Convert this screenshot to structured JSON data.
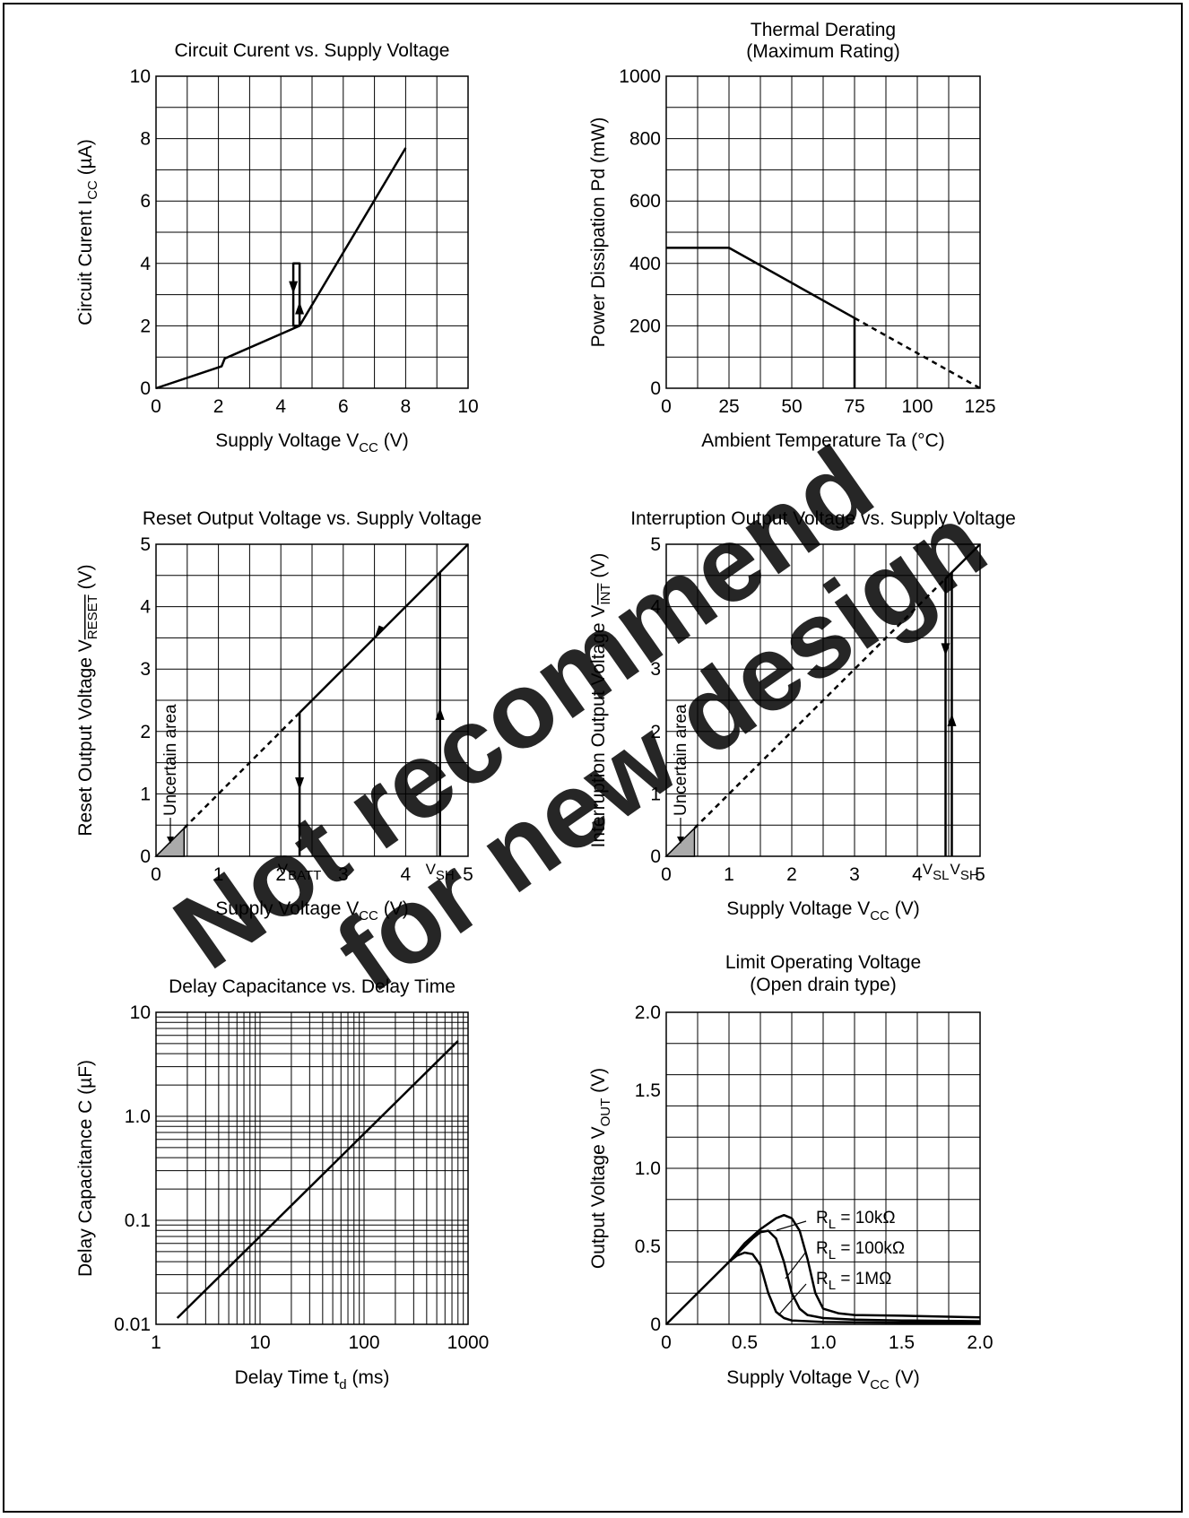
{
  "watermark": {
    "line1": "Not recommend",
    "line2": "for new design",
    "color": "#ff4040"
  },
  "chart_data": [
    {
      "id": "c1",
      "type": "line",
      "title": [
        "Circuit Curent vs. Supply Voltage"
      ],
      "xlabel": {
        "main": "Supply Voltage   V",
        "sub": "CC",
        "unit": "   (V)"
      },
      "ylabel": {
        "main": "Circuit Curent   I",
        "sub": "CC",
        "unit": "   (µA)"
      },
      "xlim": [
        0,
        10
      ],
      "ylim": [
        0,
        10
      ],
      "xticks": [
        "0",
        "2",
        "4",
        "6",
        "8",
        "10"
      ],
      "yticks": [
        "0",
        "2",
        "4",
        "6",
        "8",
        "10"
      ],
      "grid": true,
      "series": [
        {
          "x": [
            0,
            2.1,
            2.2,
            4.6,
            4.6,
            4.4,
            4.4,
            4.6,
            8.0
          ],
          "y": [
            0,
            0.7,
            0.95,
            2.0,
            4.0,
            4.0,
            2.0,
            2.0,
            7.7
          ]
        }
      ],
      "arrows": [
        {
          "x": 4.4,
          "y": 3.2,
          "dir": "down"
        },
        {
          "x": 4.6,
          "y": 2.6,
          "dir": "up"
        }
      ]
    },
    {
      "id": "c2",
      "type": "line",
      "title": [
        "Thermal Derating",
        "(Maximum Rating)"
      ],
      "xlabel": {
        "main": "Ambient Temperature   Ta   (°C)",
        "sub": "",
        "unit": ""
      },
      "ylabel": {
        "main": "Power Dissipation   Pd   (mW)",
        "sub": "",
        "unit": ""
      },
      "xlim": [
        0,
        125
      ],
      "ylim": [
        0,
        1000
      ],
      "xticks": [
        "0",
        "25",
        "50",
        "75",
        "100",
        "125"
      ],
      "yticks": [
        "0",
        "200",
        "400",
        "600",
        "800",
        "1000"
      ],
      "grid": true,
      "series": [
        {
          "x": [
            0,
            25,
            75
          ],
          "y": [
            450,
            450,
            225
          ]
        },
        {
          "x": [
            75,
            125
          ],
          "y": [
            225,
            0
          ],
          "dash": true
        },
        {
          "x": [
            75,
            75
          ],
          "y": [
            225,
            0
          ]
        }
      ]
    },
    {
      "id": "c3",
      "type": "line",
      "title": [
        "Reset Output Voltage vs. Supply Voltage"
      ],
      "xlabel": {
        "main": "Supply Voltage   V",
        "sub": "CC",
        "unit": "   (V)"
      },
      "ylabel": {
        "main": "Reset Output Voltage   V",
        "sub": "RESET",
        "unit": "   (V)"
      },
      "xlim": [
        0,
        5
      ],
      "ylim": [
        0,
        5
      ],
      "xticks": [
        "0",
        "1",
        "2",
        "3",
        "4",
        "5"
      ],
      "yticks": [
        "0",
        "1",
        "2",
        "3",
        "4",
        "5"
      ],
      "grid": true,
      "series": [
        {
          "x": [
            0.45,
            2.3
          ],
          "y": [
            0.45,
            2.3
          ],
          "dash": true
        },
        {
          "x": [
            2.3,
            5
          ],
          "y": [
            2.3,
            5
          ]
        },
        {
          "x": [
            2.3,
            2.3
          ],
          "y": [
            2.3,
            0
          ]
        },
        {
          "x": [
            4.55,
            4.55
          ],
          "y": [
            0,
            4.55
          ]
        }
      ],
      "arrows": [
        {
          "x": 3.6,
          "y": 3.6,
          "dir": "downleft"
        },
        {
          "x": 2.3,
          "y": 1.15,
          "dir": "down"
        },
        {
          "x": 4.55,
          "y": 2.3,
          "dir": "up"
        }
      ],
      "uncertain": {
        "label": "Uncertain area",
        "x": 0.45
      },
      "markers": [
        {
          "main": "V",
          "sub": "BATT",
          "x": 2.3
        },
        {
          "main": "V",
          "sub": "SH",
          "x": 4.55
        }
      ]
    },
    {
      "id": "c4",
      "type": "line",
      "title": [
        "Interruption Output Voltage vs. Supply Voltage"
      ],
      "xlabel": {
        "main": "Supply Voltage   V",
        "sub": "CC",
        "unit": "   (V)"
      },
      "ylabel": {
        "main": "Interruption Output Voltage   V",
        "sub": "INT",
        "unit": "   (V)"
      },
      "xlim": [
        0,
        5
      ],
      "ylim": [
        0,
        5
      ],
      "xticks": [
        "0",
        "1",
        "2",
        "3",
        "4",
        "5"
      ],
      "yticks": [
        "0",
        "1",
        "2",
        "3",
        "4",
        "5"
      ],
      "grid": true,
      "series": [
        {
          "x": [
            0.45,
            4.45
          ],
          "y": [
            0.45,
            4.45
          ],
          "dash": true
        },
        {
          "x": [
            4.45,
            5
          ],
          "y": [
            4.45,
            5
          ]
        },
        {
          "x": [
            4.45,
            4.45
          ],
          "y": [
            4.45,
            0
          ]
        },
        {
          "x": [
            4.55,
            4.55
          ],
          "y": [
            0,
            4.55
          ]
        }
      ],
      "arrows": [
        {
          "x": 4.45,
          "y": 3.3,
          "dir": "down"
        },
        {
          "x": 4.55,
          "y": 2.2,
          "dir": "up"
        }
      ],
      "uncertain": {
        "label": "Uncertain area",
        "x": 0.45
      },
      "markers": [
        {
          "main": "V",
          "sub": "SL",
          "x": 4.45,
          "align": "end"
        },
        {
          "main": "V",
          "sub": "SH",
          "x": 4.55,
          "align": "start"
        }
      ]
    },
    {
      "id": "c5",
      "type": "line",
      "scale": "log",
      "title": [
        "Delay Capacitance vs. Delay Time"
      ],
      "xlabel": {
        "main": "Delay Time   t",
        "sub": "d",
        "unit": "   (ms)"
      },
      "ylabel": {
        "main": "Delay Capacitance   C   (µF)",
        "sub": "",
        "unit": ""
      },
      "xlim": [
        1,
        1000
      ],
      "ylim": [
        0.01,
        10
      ],
      "xticks": [
        "1",
        "10",
        "100",
        "1000"
      ],
      "yticks": [
        "0.01",
        "0.1",
        "1.0",
        "10"
      ],
      "grid": true,
      "series": [
        {
          "x": [
            1.6,
            800
          ],
          "y": [
            0.0115,
            5.3
          ]
        }
      ]
    },
    {
      "id": "c6",
      "type": "line",
      "title": [
        "Limit Operating Voltage",
        "(Open drain type)"
      ],
      "xlabel": {
        "main": "Supply Voltage   V",
        "sub": "CC",
        "unit": "   (V)"
      },
      "ylabel": {
        "main": "Output Voltage   V",
        "sub": "OUT",
        "unit": "   (V)"
      },
      "xlim": [
        0,
        2.0
      ],
      "ylim": [
        0,
        2.0
      ],
      "xticks": [
        "0",
        "0.5",
        "1.0",
        "1.5",
        "2.0"
      ],
      "yticks": [
        "0",
        "0.5",
        "1.0",
        "1.5",
        "2.0"
      ],
      "grid": true,
      "series": [
        {
          "name": "R_L = 10kΩ",
          "x": [
            0,
            0.4,
            0.5,
            0.6,
            0.7,
            0.75,
            0.8,
            0.85,
            0.9,
            0.95,
            1.0,
            1.1,
            1.2,
            1.5,
            2.0
          ],
          "y": [
            0,
            0.4,
            0.52,
            0.61,
            0.68,
            0.7,
            0.68,
            0.6,
            0.42,
            0.2,
            0.1,
            0.07,
            0.06,
            0.055,
            0.045
          ]
        },
        {
          "name": "R_L = 100kΩ",
          "x": [
            0.4,
            0.5,
            0.55,
            0.6,
            0.65,
            0.7,
            0.75,
            0.8,
            0.85,
            0.9,
            1.0,
            1.2,
            1.5,
            2.0
          ],
          "y": [
            0.4,
            0.5,
            0.55,
            0.59,
            0.6,
            0.55,
            0.4,
            0.2,
            0.1,
            0.06,
            0.04,
            0.03,
            0.025,
            0.02
          ]
        },
        {
          "name": "R_L = 1MΩ",
          "x": [
            0.4,
            0.45,
            0.5,
            0.55,
            0.6,
            0.65,
            0.7,
            0.75,
            0.8,
            0.9,
            1.0,
            1.5,
            2.0
          ],
          "y": [
            0.4,
            0.44,
            0.46,
            0.45,
            0.38,
            0.2,
            0.08,
            0.04,
            0.025,
            0.02,
            0.015,
            0.01,
            0.01
          ]
        }
      ],
      "legend_labels": [
        {
          "main": "R",
          "sub": "L",
          "rest": " = 10kΩ"
        },
        {
          "main": "R",
          "sub": "L",
          "rest": " = 100kΩ"
        },
        {
          "main": "R",
          "sub": "L",
          "rest": " = 1MΩ"
        }
      ]
    }
  ]
}
